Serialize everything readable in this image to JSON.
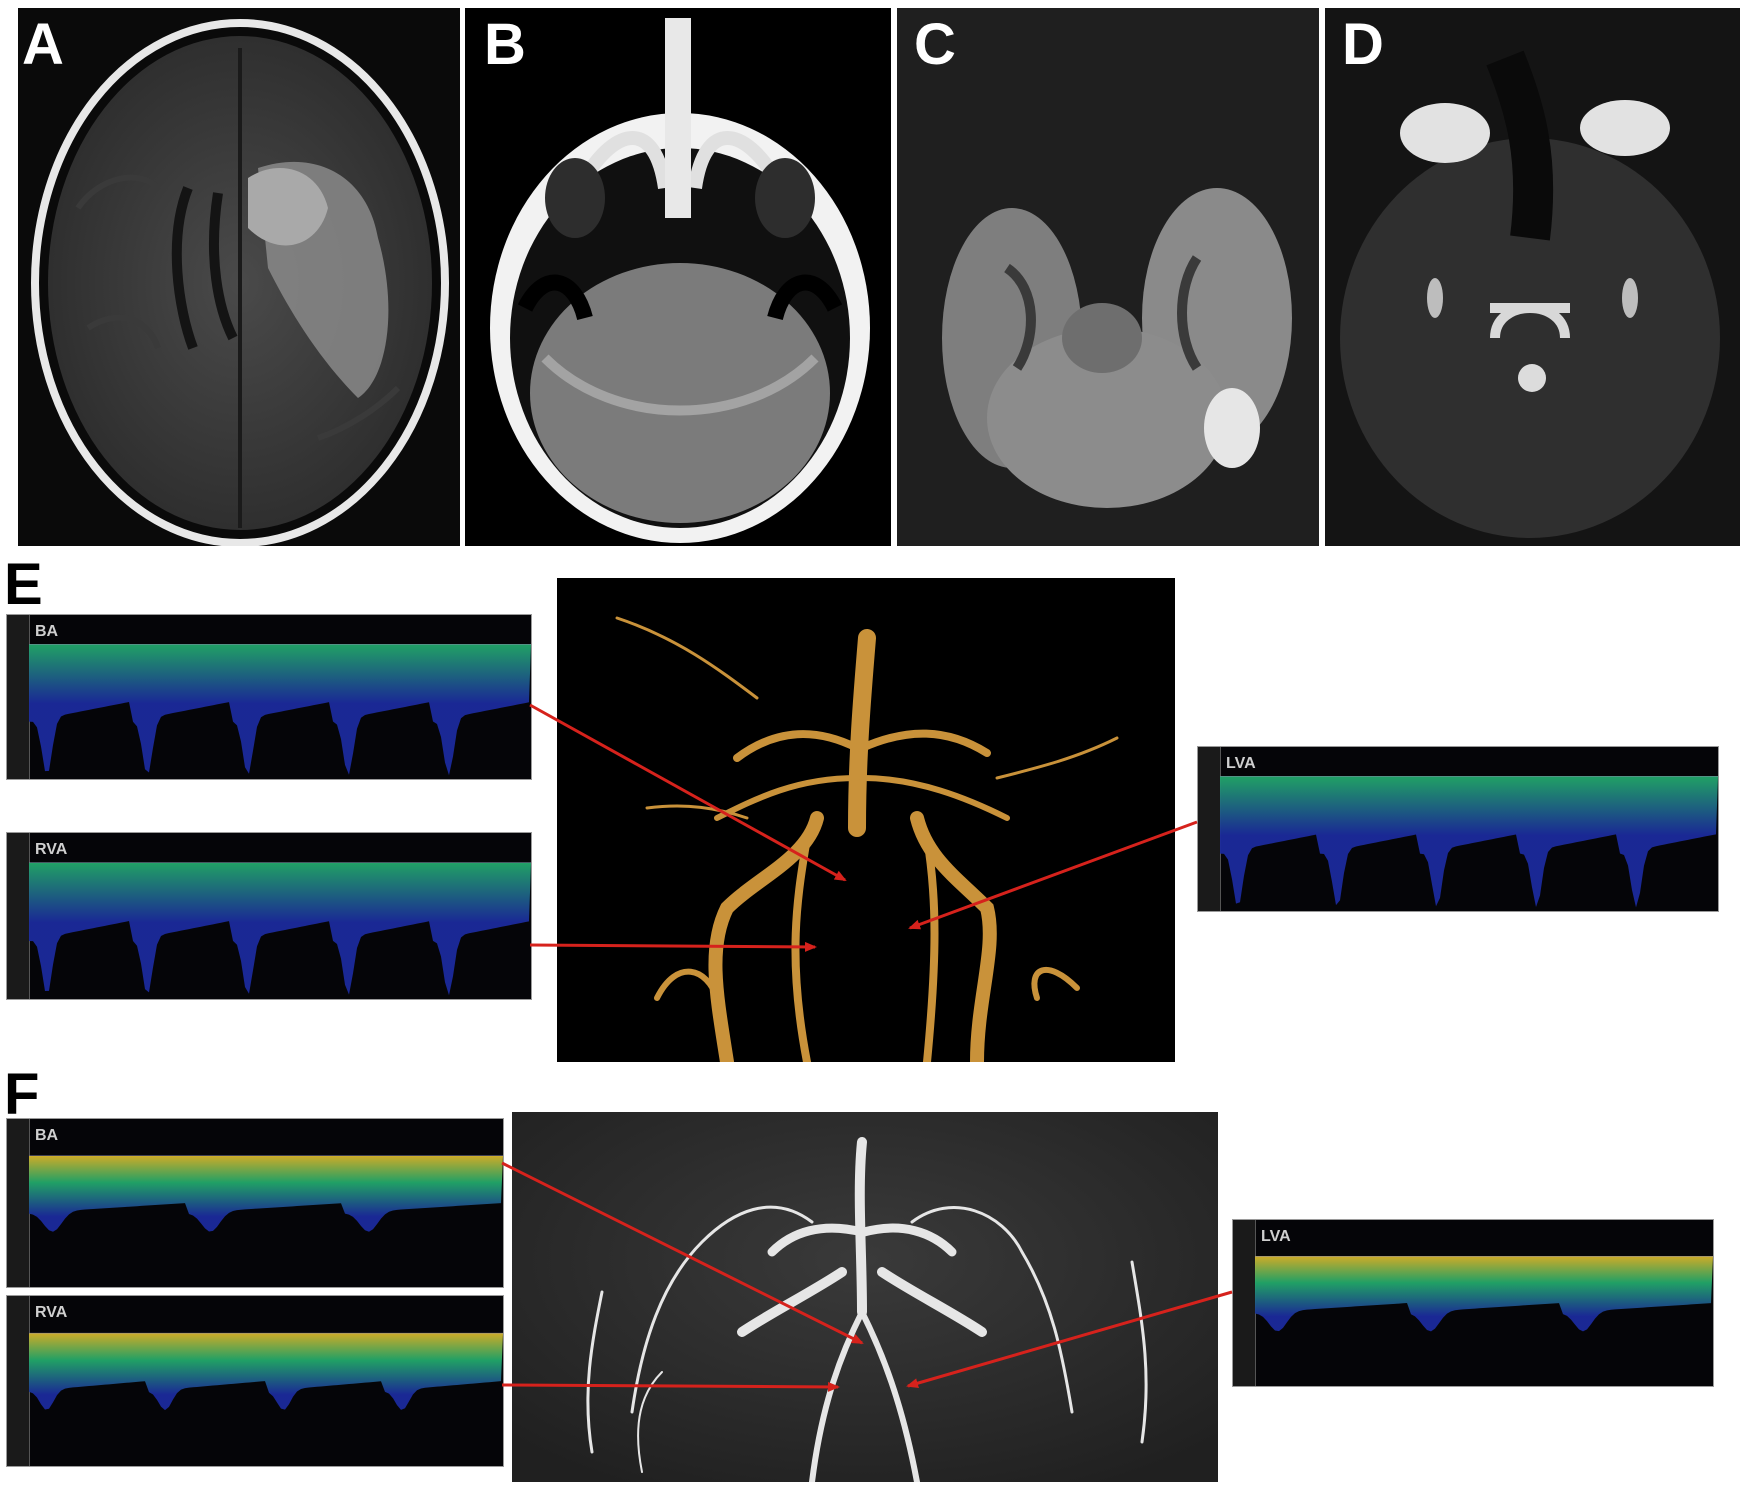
{
  "panel_labels": {
    "a": "A",
    "b": "B",
    "c": "C",
    "d": "D",
    "e": "E",
    "f": "F"
  },
  "panel_e": {
    "waveform_labels": {
      "ba": "BA",
      "rva": "RVA",
      "lva": "LVA"
    }
  },
  "panel_f": {
    "waveform_labels": {
      "ba": "BA",
      "rva": "RVA",
      "lva": "LVA"
    }
  },
  "colors": {
    "arrow": "#d6221c",
    "vessel_e": "#c9923a",
    "vessel_f": "#e6e6e6",
    "doppler_low": "#1b2a9c",
    "doppler_mid": "#22a86a",
    "doppler_high": "#d7b42a"
  }
}
